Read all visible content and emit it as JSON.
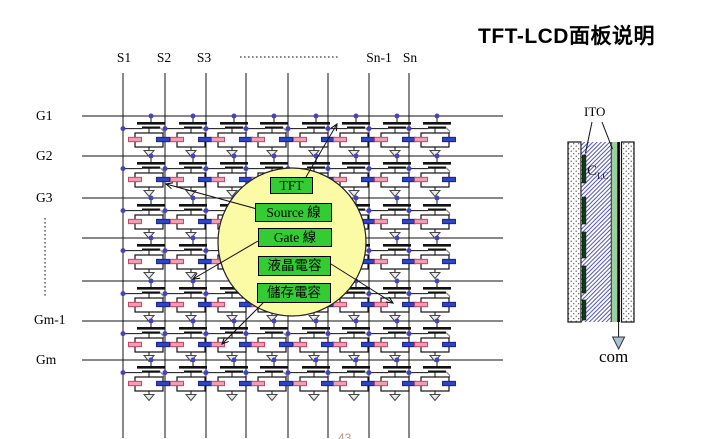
{
  "title": "TFT-LCD面板说明",
  "page_number": "43",
  "matrix": {
    "source_labels": [
      "S1",
      "S2",
      "S3",
      "Sn-1",
      "Sn"
    ],
    "gate_labels": [
      "G1",
      "G2",
      "G3",
      "Gm-1",
      "Gm"
    ]
  },
  "legend": {
    "items": [
      {
        "label": "TFT"
      },
      {
        "label": "Source 線"
      },
      {
        "label": "Gate 線"
      },
      {
        "label": "液晶電容"
      },
      {
        "label": "儲存電容"
      }
    ]
  },
  "cross_section": {
    "ito_label": "ITO",
    "cap_symbol": "C",
    "cap_symbol_sub": "LC",
    "com_label": "com"
  },
  "colors": {
    "legend_green": "#33cc33",
    "circle_yellow": "#fbfba5",
    "cap_pink": "#f29db4",
    "cap_pink_border": "#c13a5c",
    "cap_blue": "#2e44c8",
    "cap_blue_border": "#141c80",
    "node_dot_blue": "#4443be",
    "lc_hatch_blue": "#3939a8",
    "ito_strip_green": "#9ccf9c",
    "com_arrow_fill": "#a9c2d2"
  }
}
